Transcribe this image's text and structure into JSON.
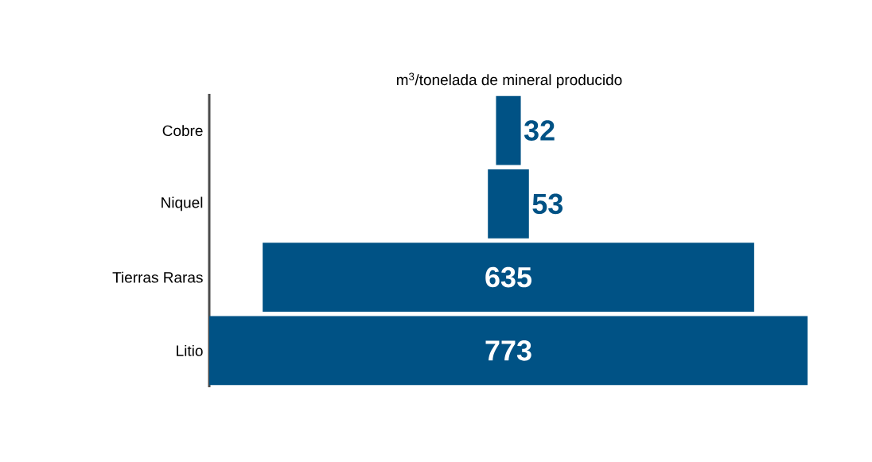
{
  "chart_data": {
    "type": "other",
    "title": "m$^{3}$/tonelada de mineral producido",
    "categories": [
      "Cobre",
      "Niquel",
      "Tierras Raras",
      "Litio"
    ],
    "values": [
      32,
      53,
      635,
      773
    ],
    "color": "#005285",
    "data_labels": true
  }
}
